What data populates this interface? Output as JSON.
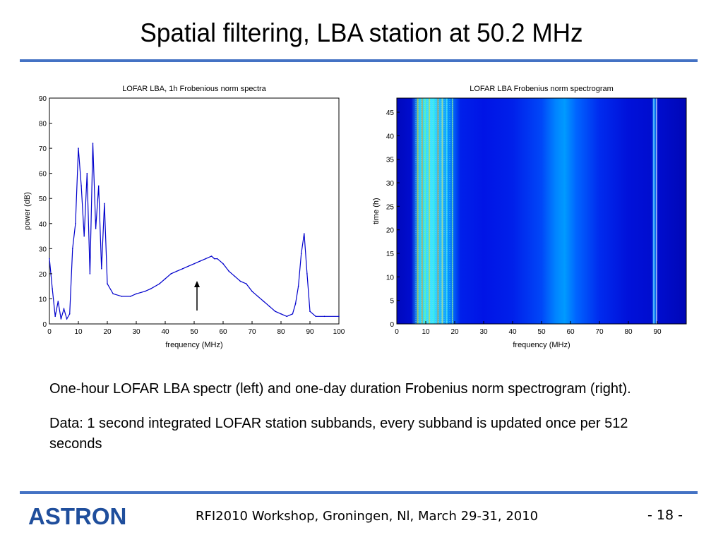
{
  "slide": {
    "title": "Spatial filtering, LBA station at 50.2 MHz",
    "caption_line1": "One-hour LOFAR LBA spectr (left) and one-day duration Frobenius norm spectrogram (right).",
    "caption_line2": "Data: 1 second integrated LOFAR station subbands, every subband is updated once per 512 seconds",
    "footer": "RFI2010 Workshop, Groningen, Nl, March 29-31, 2010",
    "page": "- 18 -",
    "logo_text": "ASTRON",
    "accent_color": "#4472c4",
    "logo_color": "#1f4e9c"
  },
  "chart_data": [
    {
      "type": "line",
      "title": "LOFAR LBA, 1h Frobenious norm spectra",
      "xlabel": "frequency (MHz)",
      "ylabel": "power (dB)",
      "xlim": [
        0,
        100
      ],
      "ylim": [
        0,
        90
      ],
      "xticks": [
        "0",
        "10",
        "20",
        "30",
        "40",
        "50",
        "60",
        "70",
        "80",
        "90",
        "100"
      ],
      "yticks": [
        "0",
        "10",
        "20",
        "30",
        "40",
        "50",
        "60",
        "70",
        "80",
        "90"
      ],
      "grid": false,
      "series": [
        {
          "color": "#0000cc",
          "x": [
            0,
            1,
            2,
            3,
            4,
            5,
            6,
            7,
            8,
            9,
            10,
            11,
            12,
            13,
            14,
            15,
            16,
            17,
            18,
            19,
            20,
            22,
            25,
            28,
            30,
            33,
            35,
            38,
            40,
            42,
            44,
            46,
            48,
            50,
            52,
            54,
            56,
            57,
            58,
            60,
            62,
            64,
            66,
            68,
            70,
            72,
            74,
            76,
            78,
            80,
            82,
            84,
            85,
            86,
            87,
            88,
            89,
            90,
            92,
            95,
            100
          ],
          "y": [
            26,
            14,
            3,
            9,
            2,
            6,
            2,
            4,
            30,
            40,
            70,
            55,
            35,
            60,
            20,
            72,
            38,
            55,
            22,
            48,
            16,
            12,
            11,
            11,
            12,
            13,
            14,
            16,
            18,
            20,
            21,
            22,
            23,
            24,
            25,
            26,
            27,
            26,
            26,
            24,
            21,
            19,
            17,
            16,
            13,
            11,
            9,
            7,
            5,
            4,
            3,
            4,
            8,
            15,
            28,
            36,
            20,
            5,
            3,
            3,
            3
          ]
        }
      ],
      "annotation": "upward arrow at ~51 MHz"
    },
    {
      "type": "heatmap",
      "title": "LOFAR LBA Frobenius norm spectrogram",
      "xlabel": "frequency (MHz)",
      "ylabel": "time (h)",
      "xlim": [
        0,
        100
      ],
      "ylim": [
        0,
        48
      ],
      "xticks": [
        "0",
        "10",
        "20",
        "30",
        "40",
        "50",
        "60",
        "70",
        "80",
        "90"
      ],
      "yticks": [
        "0",
        "5",
        "10",
        "15",
        "20",
        "25",
        "30",
        "35",
        "40",
        "45"
      ],
      "colormap": "jet",
      "column_intensity": [
        {
          "x": 0,
          "v": 0.05
        },
        {
          "x": 5,
          "v": 0.08
        },
        {
          "x": 8,
          "v": 0.55
        },
        {
          "x": 12,
          "v": 0.6
        },
        {
          "x": 18,
          "v": 0.4
        },
        {
          "x": 22,
          "v": 0.15
        },
        {
          "x": 30,
          "v": 0.12
        },
        {
          "x": 40,
          "v": 0.15
        },
        {
          "x": 50,
          "v": 0.25
        },
        {
          "x": 55,
          "v": 0.38
        },
        {
          "x": 58,
          "v": 0.42
        },
        {
          "x": 62,
          "v": 0.32
        },
        {
          "x": 70,
          "v": 0.18
        },
        {
          "x": 80,
          "v": 0.1
        },
        {
          "x": 88,
          "v": 0.08
        },
        {
          "x": 89,
          "v": 0.4
        },
        {
          "x": 90,
          "v": 0.08
        },
        {
          "x": 100,
          "v": 0.04
        }
      ]
    }
  ]
}
